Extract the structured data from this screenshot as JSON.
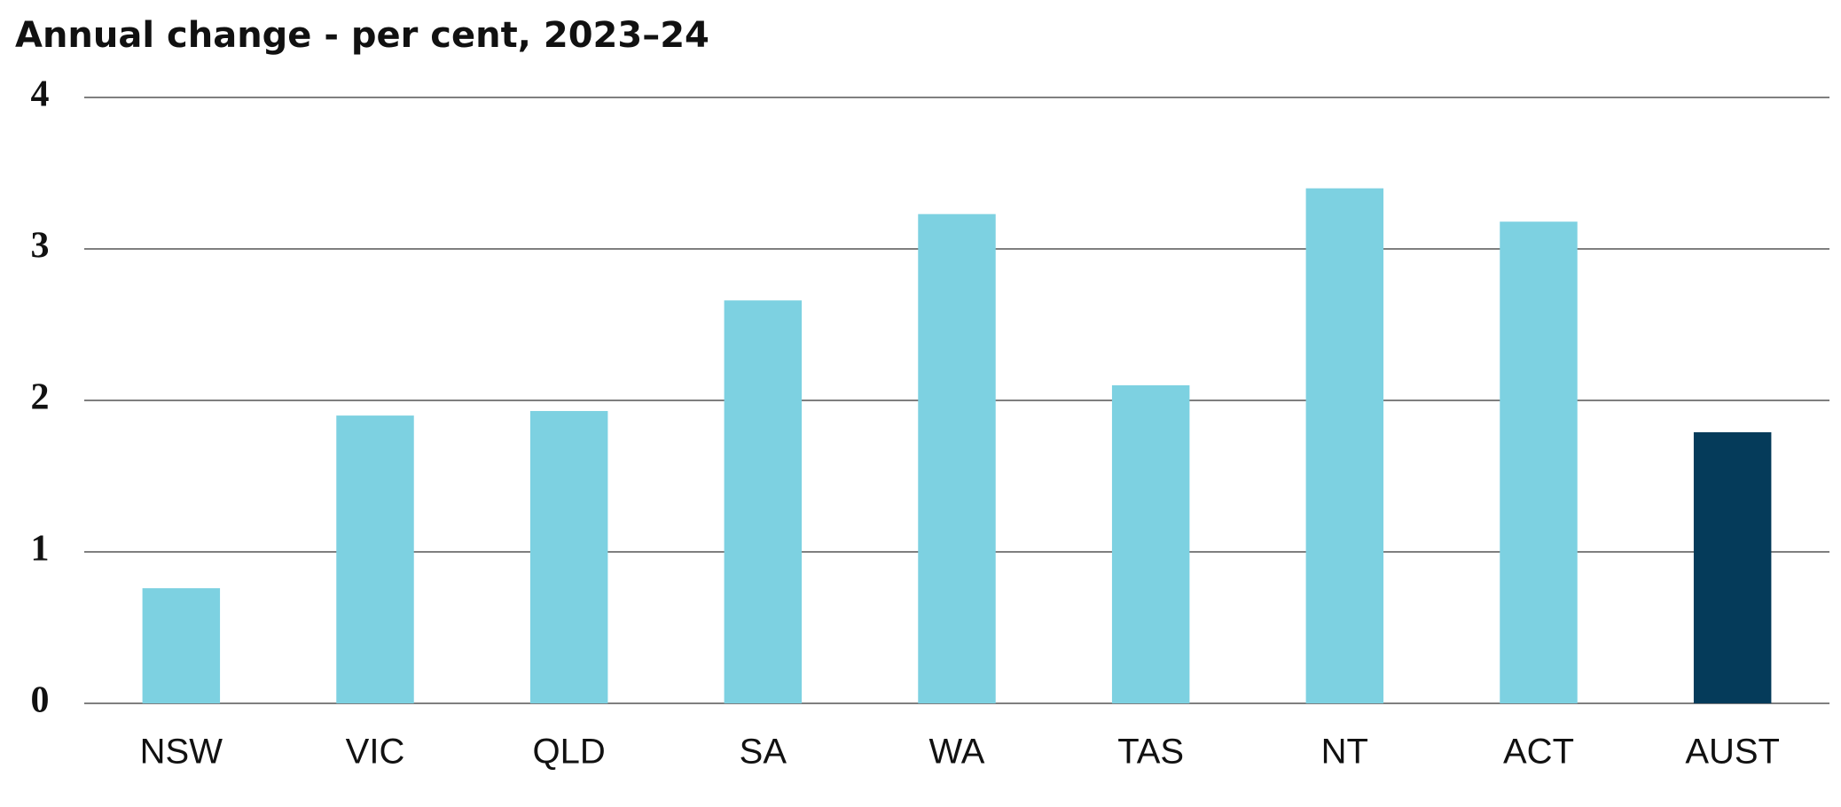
{
  "chart_data": {
    "type": "bar",
    "title": "Annual change - per cent, 2023–24",
    "categories": [
      "NSW",
      "VIC",
      "QLD",
      "SA",
      "WA",
      "TAS",
      "NT",
      "ACT",
      "AUST"
    ],
    "values": [
      0.76,
      1.9,
      1.93,
      2.66,
      3.23,
      2.1,
      3.4,
      3.18,
      1.79
    ],
    "colors": [
      "#7dd1e1",
      "#7dd1e1",
      "#7dd1e1",
      "#7dd1e1",
      "#7dd1e1",
      "#7dd1e1",
      "#7dd1e1",
      "#7dd1e1",
      "#053b5a"
    ],
    "ylim": [
      0,
      4
    ],
    "yticks": [
      0,
      1,
      2,
      3,
      4
    ],
    "grid": true
  }
}
